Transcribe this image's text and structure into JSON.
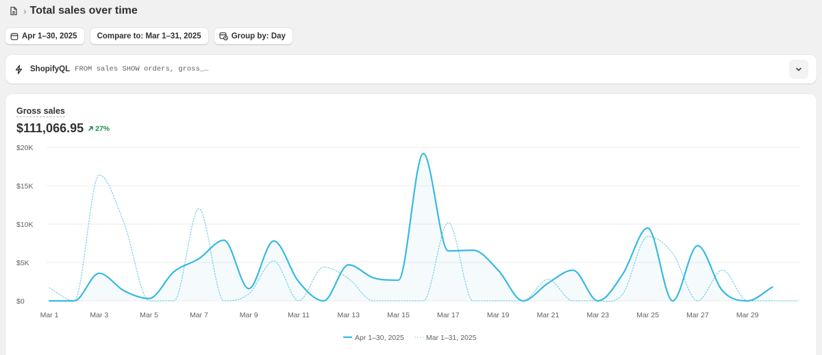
{
  "header": {
    "title": "Total sales over time",
    "separator": "›"
  },
  "filters": {
    "date_range": "Apr 1–30, 2025",
    "compare": "Compare to: Mar 1–31, 2025",
    "group_by": "Group by: Day"
  },
  "shopifyql": {
    "label": "ShopifyQL",
    "query": "FROM sales SHOW orders, gross_…"
  },
  "metric": {
    "label": "Gross sales",
    "value": "$111,066.95",
    "change": "27%",
    "change_direction": "up",
    "change_color": "#1a8f4d"
  },
  "colors": {
    "primary": "#35b9e0",
    "comparison": "#7dd0ea",
    "grid": "#ececec",
    "axis_text": "#616161"
  },
  "chart_data": {
    "type": "line",
    "x": [
      "Mar 1",
      "Mar 2",
      "Mar 3",
      "Mar 4",
      "Mar 5",
      "Mar 6",
      "Mar 7",
      "Mar 8",
      "Mar 9",
      "Mar 10",
      "Mar 11",
      "Mar 12",
      "Mar 13",
      "Mar 14",
      "Mar 15",
      "Mar 16",
      "Mar 17",
      "Mar 18",
      "Mar 19",
      "Mar 20",
      "Mar 21",
      "Mar 22",
      "Mar 23",
      "Mar 24",
      "Mar 25",
      "Mar 26",
      "Mar 27",
      "Mar 28",
      "Mar 29",
      "Mar 30",
      "Mar 31"
    ],
    "x_tick_labels": [
      "Mar 1",
      "Mar 3",
      "Mar 5",
      "Mar 7",
      "Mar 9",
      "Mar 11",
      "Mar 13",
      "Mar 15",
      "Mar 17",
      "Mar 19",
      "Mar 21",
      "Mar 23",
      "Mar 25",
      "Mar 27",
      "Mar 29"
    ],
    "y_tick_labels": [
      "$0",
      "$5K",
      "$10K",
      "$15K",
      "$20K"
    ],
    "y_ticks": [
      0,
      5000,
      10000,
      15000,
      20000
    ],
    "ylim": [
      0,
      20000
    ],
    "grid": true,
    "legend_position": "bottom",
    "series": [
      {
        "name": "Apr 1–30, 2025",
        "style": "solid",
        "values": [
          0,
          0,
          3600,
          1300,
          300,
          3800,
          5500,
          7900,
          1600,
          7800,
          2500,
          0,
          4700,
          3000,
          2700,
          19200,
          6500,
          6600,
          4000,
          0,
          2300,
          4000,
          0,
          3500,
          9500,
          0,
          7200,
          1300,
          0,
          1800,
          null
        ]
      },
      {
        "name": "Mar 1–31, 2025",
        "style": "dotted",
        "values": [
          1700,
          0,
          16400,
          10100,
          0,
          0,
          12000,
          0,
          900,
          5200,
          0,
          4400,
          2900,
          0,
          0,
          0,
          10200,
          0,
          0,
          0,
          2800,
          0,
          0,
          900,
          8400,
          6200,
          0,
          4000,
          0,
          0,
          0
        ]
      }
    ]
  }
}
